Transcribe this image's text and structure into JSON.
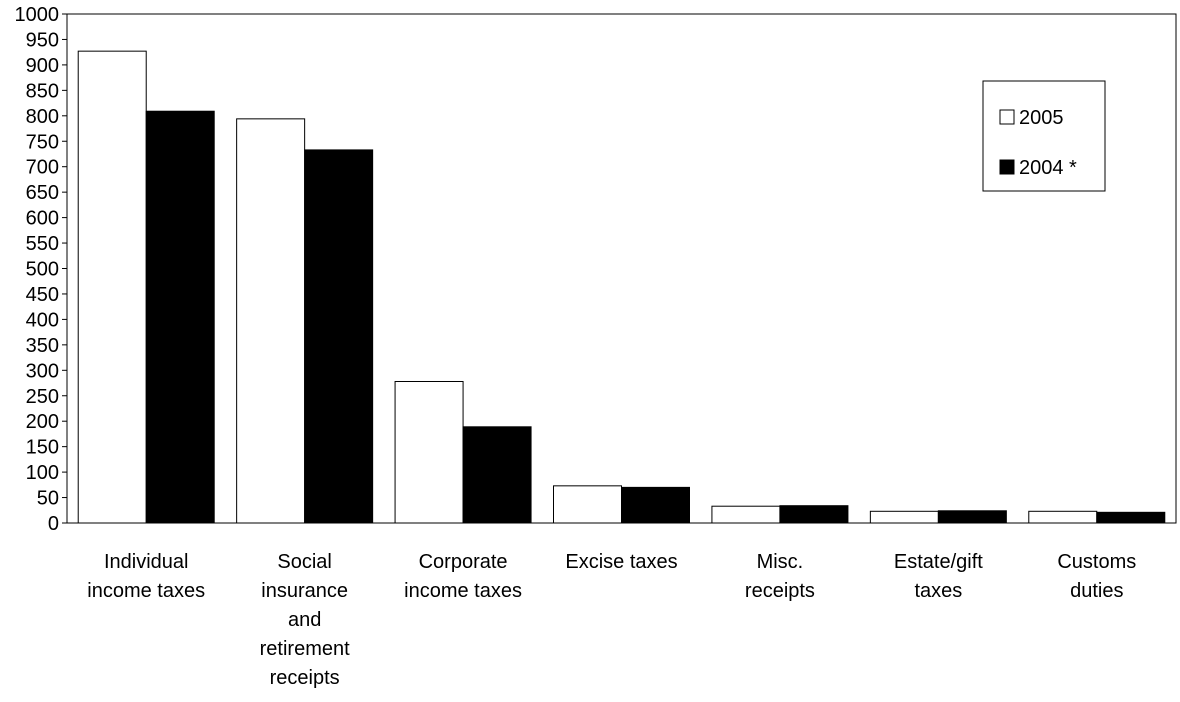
{
  "chart_data": {
    "type": "bar",
    "categories": [
      [
        "Individual",
        "income taxes"
      ],
      [
        "Social",
        "insurance",
        "and",
        "retirement",
        "receipts"
      ],
      [
        "Corporate",
        "income taxes"
      ],
      [
        "Excise taxes"
      ],
      [
        "Misc.",
        "receipts"
      ],
      [
        "Estate/gift",
        "taxes"
      ],
      [
        "Customs",
        "duties"
      ]
    ],
    "series": [
      {
        "name": "2005",
        "color": "#ffffff",
        "values": [
          927,
          794,
          278,
          73,
          33,
          23,
          23
        ]
      },
      {
        "name": "2004 *",
        "color": "#000000",
        "values": [
          809,
          733,
          189,
          70,
          34,
          24,
          21
        ]
      }
    ],
    "ylim": [
      0,
      1000
    ],
    "yticks": [
      0,
      50,
      100,
      150,
      200,
      250,
      300,
      350,
      400,
      450,
      500,
      550,
      600,
      650,
      700,
      750,
      800,
      850,
      900,
      950,
      1000
    ],
    "title": "",
    "xlabel": "",
    "ylabel": "",
    "grid": false,
    "legend_position": "top-right"
  }
}
